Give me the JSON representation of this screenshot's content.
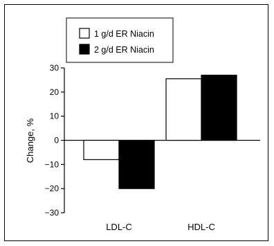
{
  "chart_data": {
    "type": "bar",
    "categories": [
      "LDL-C",
      "HDL-C"
    ],
    "series": [
      {
        "name": "1 g/d ER Niacin",
        "values": [
          -8,
          25.5
        ],
        "color": "#ffffff"
      },
      {
        "name": "2 g/d ER Niacin",
        "values": [
          -20,
          27
        ],
        "color": "#000000"
      }
    ],
    "title": "",
    "xlabel": "",
    "ylabel": "Change, %",
    "ylim": [
      -30,
      30
    ],
    "yticks": [
      30,
      20,
      10,
      0,
      -10,
      -20,
      -30
    ],
    "grid": false,
    "legend_position": "top-left"
  }
}
